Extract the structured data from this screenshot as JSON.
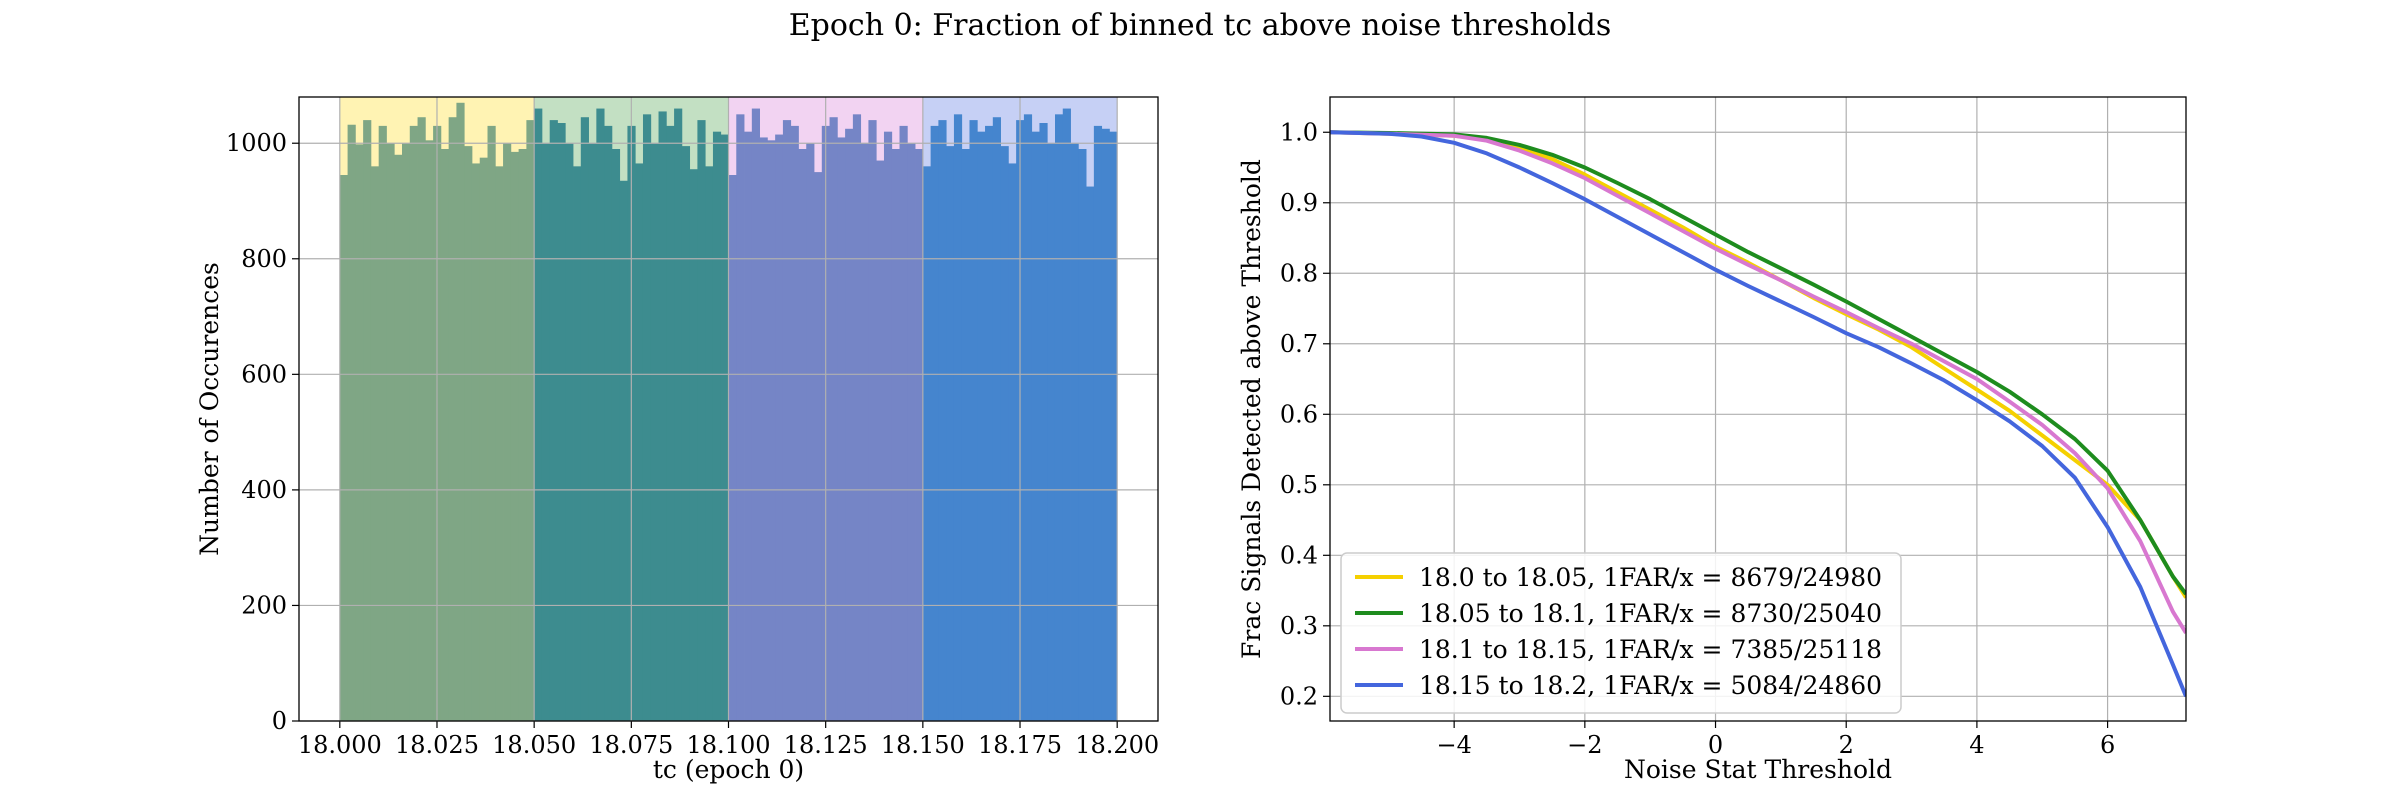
{
  "figure": {
    "title": "Epoch 0: Fraction of binned tc above noise thresholds"
  },
  "chart_data": [
    {
      "type": "bar",
      "xlabel": "tc (epoch 0)",
      "ylabel": "Number of Occurences",
      "xlim": [
        17.9895,
        18.2105
      ],
      "ylim": [
        0,
        1080
      ],
      "xticks": [
        18.0,
        18.025,
        18.05,
        18.075,
        18.1,
        18.125,
        18.15,
        18.175,
        18.2
      ],
      "xtick_labels": [
        "18.000",
        "18.025",
        "18.050",
        "18.075",
        "18.100",
        "18.125",
        "18.150",
        "18.175",
        "18.200"
      ],
      "yticks": [
        0,
        200,
        400,
        600,
        800,
        1000
      ],
      "grid": true,
      "bin_width": 0.002,
      "bin_start": 18.0,
      "counts": [
        945,
        1032,
        998,
        1040,
        960,
        1030,
        1000,
        980,
        1000,
        1030,
        1045,
        1005,
        1030,
        990,
        1045,
        1070,
        995,
        965,
        975,
        1030,
        960,
        1000,
        985,
        990,
        1040,
        1060,
        1000,
        1040,
        1035,
        1000,
        960,
        1045,
        1000,
        1060,
        1030,
        990,
        935,
        1030,
        965,
        1050,
        1000,
        1055,
        1030,
        1060,
        995,
        955,
        1040,
        960,
        1020,
        1015,
        945,
        1050,
        1020,
        1060,
        1010,
        1005,
        1015,
        1040,
        1030,
        990,
        1000,
        950,
        1030,
        1045,
        1010,
        1025,
        1050,
        1000,
        1040,
        970,
        1020,
        990,
        1030,
        1000,
        990,
        960,
        1030,
        1040,
        995,
        1050,
        990,
        1040,
        1020,
        1030,
        1045,
        995,
        965,
        1040,
        1050,
        1020,
        1035,
        1000,
        1050,
        1060,
        1000,
        990,
        925,
        1030,
        1025,
        1020
      ],
      "bands": [
        {
          "from": 18.0,
          "to": 18.05,
          "bg": "#fff3b3",
          "bar": "#7fa685"
        },
        {
          "from": 18.05,
          "to": 18.1,
          "bg": "#c3e0c3",
          "bar": "#3d8c8f"
        },
        {
          "from": 18.1,
          "to": 18.15,
          "bg": "#f2d3f2",
          "bar": "#7585c6"
        },
        {
          "from": 18.15,
          "to": 18.2,
          "bg": "#c6d0f5",
          "bar": "#4585ce"
        }
      ]
    },
    {
      "type": "line",
      "xlabel": "Noise Stat Threshold",
      "ylabel": "Frac Signals Detected above Threshold",
      "xlim": [
        -5.9,
        7.2
      ],
      "ylim": [
        0.165,
        1.05
      ],
      "xticks": [
        -4,
        -2,
        0,
        2,
        4,
        6
      ],
      "xtick_labels": [
        "−4",
        "−2",
        "0",
        "2",
        "4",
        "6"
      ],
      "yticks": [
        0.2,
        0.3,
        0.4,
        0.5,
        0.6,
        0.7,
        0.8,
        0.9,
        1.0
      ],
      "ytick_labels": [
        "0.2",
        "0.3",
        "0.4",
        "0.5",
        "0.6",
        "0.7",
        "0.8",
        "0.9",
        "1.0"
      ],
      "grid": true,
      "legend": "lower-left",
      "series": [
        {
          "name": "18.0 to 18.05, 1FAR/x = 8679/24980",
          "color": "#f5d000",
          "x": [
            -5.9,
            -5,
            -4,
            -3.5,
            -3,
            -2.5,
            -2,
            -1.5,
            -1,
            -0.5,
            0,
            0.5,
            1,
            1.5,
            2,
            2.5,
            3,
            3.5,
            4,
            4.5,
            5,
            5.5,
            6,
            6.5,
            7,
            7.2
          ],
          "y": [
            1.0,
            0.998,
            0.995,
            0.99,
            0.978,
            0.962,
            0.94,
            0.915,
            0.89,
            0.865,
            0.838,
            0.815,
            0.79,
            0.765,
            0.742,
            0.72,
            0.695,
            0.665,
            0.635,
            0.605,
            0.57,
            0.535,
            0.5,
            0.45,
            0.37,
            0.34
          ]
        },
        {
          "name": "18.05 to 18.1, 1FAR/x = 8730/25040",
          "color": "#1e8c1e",
          "x": [
            -5.9,
            -5,
            -4,
            -3.5,
            -3,
            -2.5,
            -2,
            -1.5,
            -1,
            -0.5,
            0,
            0.5,
            1,
            1.5,
            2,
            2.5,
            3,
            3.5,
            4,
            4.5,
            5,
            5.5,
            6,
            6.5,
            7,
            7.2
          ],
          "y": [
            1.0,
            0.999,
            0.997,
            0.992,
            0.982,
            0.968,
            0.95,
            0.928,
            0.905,
            0.88,
            0.855,
            0.83,
            0.807,
            0.784,
            0.76,
            0.735,
            0.71,
            0.685,
            0.66,
            0.632,
            0.6,
            0.565,
            0.52,
            0.45,
            0.37,
            0.345
          ]
        },
        {
          "name": "18.1 to 18.15, 1FAR/x = 7385/25118",
          "color": "#d878d0",
          "x": [
            -5.9,
            -5,
            -4,
            -3.5,
            -3,
            -2.5,
            -2,
            -1.5,
            -1,
            -0.5,
            0,
            0.5,
            1,
            1.5,
            2,
            2.5,
            3,
            3.5,
            4,
            4.5,
            5,
            5.5,
            6,
            6.5,
            7,
            7.2
          ],
          "y": [
            1.0,
            0.998,
            0.995,
            0.988,
            0.974,
            0.956,
            0.935,
            0.91,
            0.885,
            0.86,
            0.835,
            0.812,
            0.79,
            0.767,
            0.745,
            0.722,
            0.7,
            0.675,
            0.65,
            0.618,
            0.585,
            0.545,
            0.495,
            0.42,
            0.32,
            0.29
          ]
        },
        {
          "name": "18.15 to 18.2, 1FAR/x = 5084/24860",
          "color": "#4466dd",
          "x": [
            -5.9,
            -5,
            -4.5,
            -4,
            -3.5,
            -3,
            -2.5,
            -2,
            -1.5,
            -1,
            -0.5,
            0,
            0.5,
            1,
            1.5,
            2,
            2.5,
            3,
            3.5,
            4,
            4.5,
            5,
            5.5,
            6,
            6.5,
            7,
            7.2
          ],
          "y": [
            1.0,
            0.998,
            0.994,
            0.985,
            0.97,
            0.95,
            0.928,
            0.905,
            0.88,
            0.855,
            0.83,
            0.805,
            0.782,
            0.76,
            0.738,
            0.715,
            0.695,
            0.672,
            0.648,
            0.62,
            0.59,
            0.555,
            0.51,
            0.44,
            0.355,
            0.245,
            0.2
          ]
        }
      ]
    }
  ]
}
